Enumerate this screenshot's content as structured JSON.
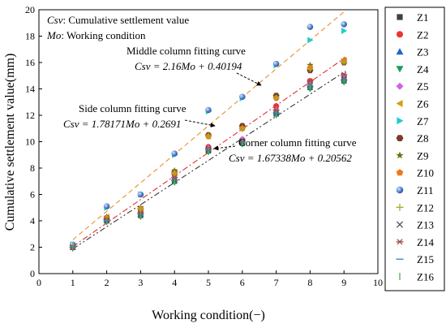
{
  "chart_data": {
    "type": "scatter",
    "xlabel": "Working condition(−)",
    "ylabel": "Cumulative settlement value(mm)",
    "xlim": [
      0,
      10
    ],
    "ylim": [
      0,
      20
    ],
    "xticks": [
      "0",
      "1",
      "2",
      "3",
      "4",
      "5",
      "6",
      "7",
      "8",
      "9",
      "10"
    ],
    "yticks": [
      "0",
      "2",
      "4",
      "6",
      "8",
      "10",
      "12",
      "14",
      "16",
      "18",
      "20"
    ],
    "grid": false,
    "legend_position": "right",
    "notes": {
      "line1": {
        "em": "Csv",
        "text": ": Cumulative settlement value"
      },
      "line2": {
        "em": "Mo",
        "text": ": Working condition"
      }
    },
    "fits": [
      {
        "label": "Middle column fitting curve",
        "formula": "Csv = 2.16Mo + 0.40194",
        "slope": 2.16,
        "intercept": 0.40194,
        "color": "#e8922a",
        "dash": "6,4"
      },
      {
        "label": "Side column fitting curve",
        "formula": "Csv = 1.78171Mo + 0.2691",
        "slope": 1.78171,
        "intercept": 0.2691,
        "color": "#d83030",
        "dash": "7,3,2,3"
      },
      {
        "label": "Corner column fitting curve",
        "formula": "Csv = 1.67338Mo + 0.20562",
        "slope": 1.67338,
        "intercept": 0.20562,
        "color": "#333333",
        "dash": "7,3,2,3,2,3"
      }
    ],
    "x": [
      1,
      2,
      3,
      4,
      5,
      6,
      7,
      8,
      9
    ],
    "series": [
      {
        "name": "Z1",
        "marker": "square",
        "color": "#404040",
        "values": [
          2.0,
          4.0,
          4.4,
          7.0,
          9.3,
          9.9,
          12.1,
          14.1,
          14.6
        ]
      },
      {
        "name": "Z2",
        "marker": "circle",
        "color": "#ee3333",
        "values": [
          2.1,
          4.2,
          4.8,
          7.5,
          9.6,
          11.0,
          12.7,
          14.6,
          14.9
        ]
      },
      {
        "name": "Z3",
        "marker": "triangle-up",
        "color": "#2266cc",
        "values": [
          2.0,
          4.1,
          4.5,
          7.2,
          9.4,
          10.0,
          12.3,
          14.3,
          14.8
        ]
      },
      {
        "name": "Z4",
        "marker": "triangle-down",
        "color": "#1a9a5a",
        "values": [
          1.9,
          3.9,
          4.3,
          6.9,
          9.2,
          9.8,
          12.0,
          14.0,
          14.5
        ]
      },
      {
        "name": "Z5",
        "marker": "diamond",
        "color": "#cc66dd",
        "values": [
          2.1,
          4.1,
          4.6,
          7.3,
          9.5,
          10.2,
          12.4,
          14.4,
          15.0
        ]
      },
      {
        "name": "Z6",
        "marker": "triangle-left",
        "color": "#d4a012",
        "values": [
          2.1,
          4.3,
          4.9,
          7.7,
          10.4,
          11.1,
          13.4,
          15.6,
          16.2
        ]
      },
      {
        "name": "Z7",
        "marker": "triangle-right",
        "color": "#22cccc",
        "values": [
          2.2,
          5.0,
          6.0,
          9.0,
          12.3,
          13.3,
          15.8,
          17.7,
          18.4
        ]
      },
      {
        "name": "Z8",
        "marker": "hexagon",
        "color": "#7a3a2a",
        "values": [
          2.0,
          4.2,
          4.9,
          7.7,
          10.5,
          11.2,
          13.5,
          15.4,
          16.0
        ]
      },
      {
        "name": "Z9",
        "marker": "star",
        "color": "#6e6e10",
        "values": [
          2.1,
          4.3,
          5.0,
          7.8,
          10.5,
          11.1,
          13.4,
          15.8,
          16.2
        ]
      },
      {
        "name": "Z10",
        "marker": "pentagon",
        "color": "#f07818",
        "values": [
          2.1,
          4.2,
          4.9,
          7.6,
          10.4,
          11.0,
          13.3,
          15.6,
          16.1
        ]
      },
      {
        "name": "Z11",
        "marker": "sphere",
        "color": "#5b8fd6",
        "values": [
          2.2,
          5.1,
          6.0,
          9.1,
          12.4,
          13.4,
          15.9,
          18.7,
          18.9
        ]
      },
      {
        "name": "Z12",
        "marker": "plus",
        "color": "#9ab030",
        "values": [
          2.1,
          4.2,
          4.9,
          7.6,
          10.4,
          11.0,
          13.3,
          15.5,
          16.0
        ]
      },
      {
        "name": "Z13",
        "marker": "cross",
        "color": "#555555",
        "values": [
          2.0,
          4.0,
          4.5,
          7.1,
          9.4,
          10.0,
          12.2,
          14.3,
          14.8
        ]
      },
      {
        "name": "Z14",
        "marker": "asterisk",
        "color": "#a05050",
        "values": [
          2.0,
          4.1,
          4.6,
          7.3,
          9.5,
          10.1,
          12.4,
          14.6,
          15.1
        ]
      },
      {
        "name": "Z15",
        "marker": "hline",
        "color": "#3377dd",
        "values": [
          2.0,
          4.0,
          4.5,
          7.1,
          9.4,
          10.0,
          12.2,
          14.2,
          14.7
        ]
      },
      {
        "name": "Z16",
        "marker": "vline",
        "color": "#55aa55",
        "values": [
          2.0,
          4.0,
          4.4,
          7.0,
          9.3,
          9.9,
          12.1,
          14.2,
          14.7
        ]
      }
    ]
  }
}
